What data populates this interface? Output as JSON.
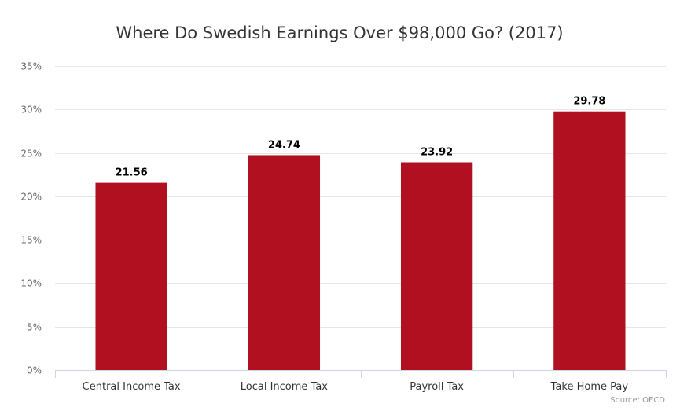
{
  "chart_data": {
    "type": "bar",
    "title": "Where Do Swedish Earnings Over $98,000 Go? (2017)",
    "categories": [
      "Central Income Tax",
      "Local Income Tax",
      "Payroll Tax",
      "Take Home Pay"
    ],
    "values": [
      21.56,
      24.74,
      23.92,
      29.78
    ],
    "data_labels": [
      "21.56",
      "24.74",
      "23.92",
      "29.78"
    ],
    "ylim": [
      0,
      35
    ],
    "y_ticks": [
      0,
      5,
      10,
      15,
      20,
      25,
      30,
      35
    ],
    "y_tick_labels": [
      "0%",
      "5%",
      "10%",
      "15%",
      "20%",
      "25%",
      "30%",
      "35%"
    ],
    "xlabel": "",
    "ylabel": "",
    "grid": true,
    "legend": false,
    "bar_color": "#b01020",
    "credit": "Source: OECD"
  }
}
